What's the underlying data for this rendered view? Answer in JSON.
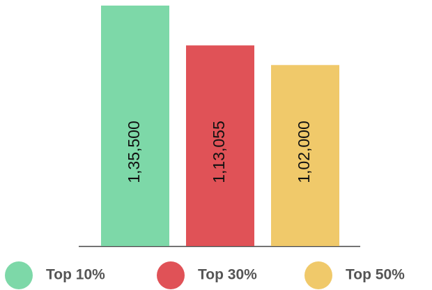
{
  "chart_data": {
    "type": "bar",
    "categories": [
      "Top 10%",
      "Top 30%",
      "Top 50%"
    ],
    "values": [
      135500,
      113055,
      102000
    ],
    "value_labels": [
      "1,35,500",
      "1,13,055",
      "1,02,000"
    ],
    "colors": [
      "#7dd8a8",
      "#e05257",
      "#f0c96a"
    ]
  }
}
